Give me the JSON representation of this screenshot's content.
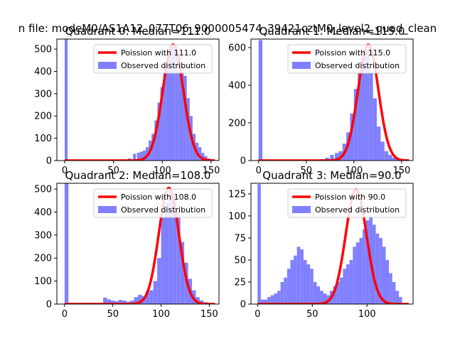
{
  "figure": {
    "suptitle": "n file: modeM0/AS1A12_077T06_9000005474_39421cztM0_level2_quad_clean"
  },
  "colors": {
    "hist": "#8080ff",
    "curve": "#ff0000",
    "axes": "#000000",
    "background": "#ffffff"
  },
  "chart_data": [
    {
      "type": "bar",
      "title": "Quadrant 0: Median=111.0",
      "xlim": [
        -8,
        158
      ],
      "ylim": [
        0,
        545
      ],
      "xticks": [
        0,
        50,
        100,
        150
      ],
      "yticks": [
        0,
        100,
        200,
        300,
        400,
        500
      ],
      "legend": [
        "Poission with 111.0",
        "Observed distribution"
      ],
      "legend_position": "top-right",
      "poisson_mean": 111.0,
      "curve_peak": 520,
      "bins": {
        "x": [
          0,
          40,
          43,
          46,
          50,
          55,
          60,
          65,
          70,
          74,
          77,
          80,
          83,
          86,
          89,
          92,
          95,
          98,
          101,
          104,
          107,
          110,
          113,
          116,
          119,
          122,
          125,
          128,
          131,
          134,
          137,
          140,
          143,
          146,
          150
        ],
        "width": 3,
        "values": [
          545,
          3,
          2,
          2,
          3,
          4,
          6,
          10,
          30,
          35,
          40,
          45,
          60,
          90,
          120,
          180,
          260,
          330,
          400,
          450,
          500,
          510,
          515,
          470,
          420,
          380,
          280,
          200,
          120,
          80,
          60,
          35,
          20,
          10,
          3
        ]
      }
    },
    {
      "type": "bar",
      "title": "Quadrant 1: Median=115.0",
      "xlim": [
        -8,
        162
      ],
      "ylim": [
        0,
        645
      ],
      "xticks": [
        0,
        50,
        100,
        150
      ],
      "yticks": [
        0,
        200,
        400,
        600
      ],
      "legend": [
        "Poission with 115.0",
        "Observed distribution"
      ],
      "legend_position": "top-right",
      "poisson_mean": 115.0,
      "curve_peak": 615,
      "bins": {
        "x": [
          0,
          45,
          50,
          55,
          60,
          65,
          70,
          75,
          80,
          84,
          88,
          92,
          96,
          100,
          104,
          108,
          112,
          116,
          120,
          124,
          128,
          132,
          136,
          140,
          144,
          148,
          152
        ],
        "width": 4,
        "values": [
          640,
          3,
          3,
          4,
          5,
          8,
          15,
          30,
          40,
          50,
          90,
          150,
          250,
          380,
          470,
          560,
          590,
          470,
          330,
          180,
          100,
          50,
          30,
          15,
          8,
          4,
          2
        ]
      }
    },
    {
      "type": "bar",
      "title": "Quadrant 2: Median=108.0",
      "xlim": [
        -8,
        160
      ],
      "ylim": [
        0,
        525
      ],
      "xticks": [
        0,
        50,
        100,
        150
      ],
      "yticks": [
        0,
        100,
        200,
        300,
        400,
        500
      ],
      "legend": [
        "Poission with 108.0",
        "Observed distribution"
      ],
      "legend_position": "top-right",
      "poisson_mean": 108.0,
      "curve_peak": 505,
      "bins": {
        "x": [
          0,
          36,
          40,
          44,
          48,
          52,
          56,
          60,
          64,
          68,
          72,
          76,
          80,
          84,
          88,
          92,
          96,
          100,
          104,
          108,
          112,
          116,
          120,
          124,
          128,
          132,
          136,
          140,
          144,
          148,
          152
        ],
        "width": 4,
        "values": [
          525,
          5,
          28,
          20,
          15,
          12,
          18,
          15,
          10,
          15,
          30,
          40,
          35,
          55,
          60,
          100,
          200,
          380,
          440,
          500,
          470,
          400,
          270,
          180,
          110,
          60,
          30,
          15,
          8,
          4,
          2
        ]
      }
    },
    {
      "type": "bar",
      "title": "Quadrant 3: Median=90.0",
      "xlim": [
        -6,
        142
      ],
      "ylim": [
        0,
        137
      ],
      "xticks": [
        0,
        50,
        100
      ],
      "yticks": [
        0,
        25,
        50,
        75,
        100,
        125
      ],
      "legend": [
        "Poission with 90.0",
        "Observed distribution"
      ],
      "legend_position": "top-right",
      "poisson_mean": 90.0,
      "curve_peak": 130,
      "bins": {
        "x": [
          0,
          3,
          6,
          9,
          12,
          15,
          18,
          21,
          24,
          27,
          30,
          33,
          36,
          39,
          42,
          45,
          48,
          51,
          54,
          57,
          60,
          63,
          66,
          69,
          72,
          75,
          78,
          81,
          84,
          87,
          90,
          93,
          96,
          99,
          102,
          105,
          108,
          111,
          114,
          117,
          120,
          123,
          126,
          129
        ],
        "width": 3,
        "values": [
          136,
          5,
          5,
          8,
          10,
          12,
          15,
          25,
          30,
          40,
          50,
          55,
          65,
          62,
          50,
          45,
          40,
          25,
          20,
          15,
          12,
          10,
          15,
          20,
          25,
          30,
          40,
          45,
          50,
          65,
          70,
          75,
          85,
          95,
          100,
          90,
          80,
          75,
          65,
          50,
          35,
          25,
          15,
          8
        ]
      }
    }
  ]
}
